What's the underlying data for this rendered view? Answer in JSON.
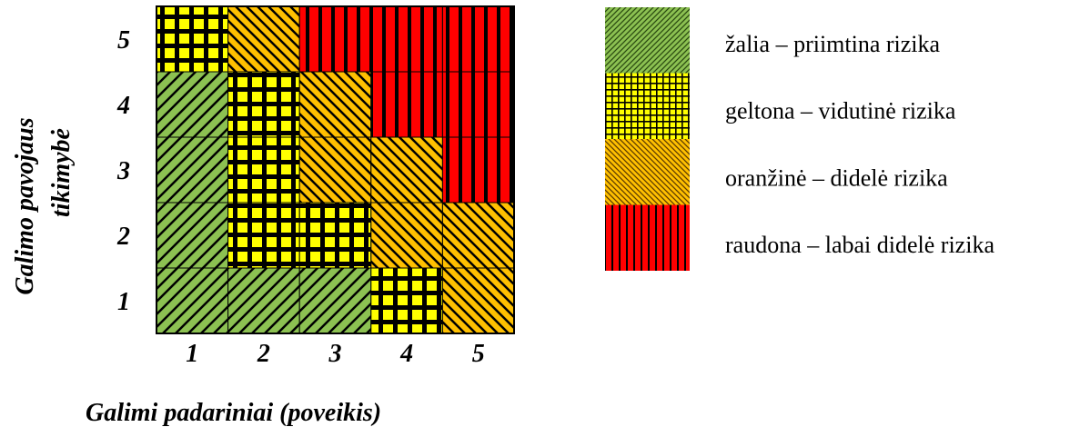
{
  "chart_data": {
    "type": "heatmap",
    "title": "",
    "ylabel_lines": [
      "Galimo pavojaus",
      "tikimybė"
    ],
    "xlabel": "Galimi padariniai (poveikis)",
    "x_categories": [
      "1",
      "2",
      "3",
      "4",
      "5"
    ],
    "y_categories": [
      "1",
      "2",
      "3",
      "4",
      "5"
    ],
    "cells": [
      {
        "y": "5",
        "levels": [
          "yellow",
          "orange",
          "red",
          "red",
          "red"
        ]
      },
      {
        "y": "4",
        "levels": [
          "green",
          "yellow",
          "orange",
          "red",
          "red"
        ]
      },
      {
        "y": "3",
        "levels": [
          "green",
          "yellow",
          "orange",
          "orange",
          "red"
        ]
      },
      {
        "y": "2",
        "levels": [
          "green",
          "yellow",
          "yellow",
          "orange",
          "orange"
        ]
      },
      {
        "y": "1",
        "levels": [
          "green",
          "green",
          "green",
          "yellow",
          "orange"
        ]
      }
    ],
    "legend_position": "right",
    "legend": [
      {
        "key": "green",
        "label": "žalia – priimtina rizika",
        "color": "#8cc152"
      },
      {
        "key": "yellow",
        "label": "geltona – vidutinė rizika",
        "color": "#ffff00"
      },
      {
        "key": "orange",
        "label": "oranžinė – didelė rizika",
        "color": "#ffc000"
      },
      {
        "key": "red",
        "label": "raudona – labai didelė rizika",
        "color": "#ff0000"
      }
    ]
  }
}
